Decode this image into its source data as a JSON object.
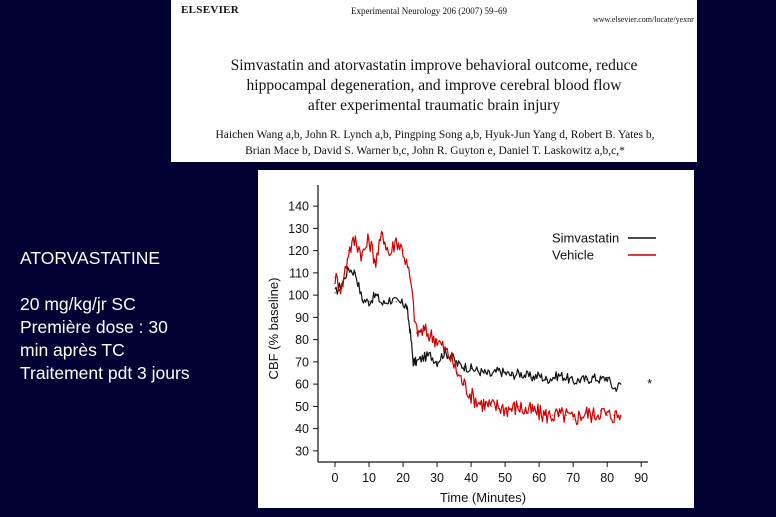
{
  "paper": {
    "publisher": "ELSEVIER",
    "journal": "Experimental Neurology 206 (2007) 59–69",
    "url": "www.elsevier.com/locate/yexnr",
    "title_lines": [
      "Simvastatin and atorvastatin improve behavioral outcome, reduce",
      "hippocampal degeneration, and improve cerebral blood flow",
      "after experimental traumatic brain injury"
    ],
    "authors_lines": [
      "Haichen Wang a,b, John R. Lynch a,b, Pingping Song a,b, Hyuk-Jun Yang d, Robert B. Yates b,",
      "Brian Mace b, David S. Warner b,c, John R. Guyton e, Daniel T. Laskowitz a,b,c,*"
    ]
  },
  "slide": {
    "drug": "ATORVASTATINE",
    "details": [
      "20 mg/kg/jr SC",
      "Première dose : 30",
      "min après TC",
      "Traitement pdt 3 jours"
    ]
  },
  "chart_data": {
    "type": "line",
    "xlabel": "Time (Minutes)",
    "ylabel": "CBF (% baseline)",
    "xticks": [
      0,
      10,
      20,
      30,
      40,
      50,
      60,
      70,
      80,
      90
    ],
    "yticks": [
      30,
      40,
      50,
      60,
      70,
      80,
      90,
      100,
      110,
      120,
      130,
      140
    ],
    "xlim": [
      -5,
      92
    ],
    "ylim": [
      25,
      145
    ],
    "annotation": "*",
    "legend_position": "top-right",
    "series": [
      {
        "name": "Simvastatin",
        "color": "#111111",
        "x": [
          0,
          2,
          4,
          6,
          8,
          10,
          12,
          14,
          16,
          18,
          20,
          21,
          22,
          23,
          24,
          26,
          28,
          30,
          32,
          34,
          36,
          38,
          40,
          42,
          44,
          46,
          48,
          50,
          52,
          54,
          56,
          58,
          60,
          62,
          64,
          66,
          68,
          70,
          72,
          74,
          76,
          78,
          80,
          82,
          84
        ],
        "y": [
          101,
          105,
          112,
          110,
          98,
          97,
          100,
          96,
          98,
          97,
          96,
          95,
          85,
          70,
          70,
          72,
          73,
          70,
          74,
          73,
          69,
          68,
          67,
          66,
          65,
          64,
          66,
          65,
          64,
          65,
          64,
          63,
          64,
          62,
          63,
          64,
          63,
          61,
          62,
          62,
          63,
          62,
          63,
          58,
          60
        ]
      },
      {
        "name": "Vehicle",
        "color": "#cc0000",
        "x": [
          0,
          2,
          4,
          6,
          8,
          10,
          12,
          14,
          16,
          18,
          20,
          22,
          24,
          26,
          28,
          30,
          32,
          34,
          36,
          38,
          40,
          42,
          44,
          46,
          48,
          50,
          52,
          54,
          56,
          58,
          60,
          62,
          64,
          66,
          68,
          70,
          72,
          74,
          76,
          78,
          80,
          82,
          84
        ],
        "y": [
          108,
          103,
          120,
          125,
          118,
          125,
          115,
          128,
          118,
          125,
          120,
          108,
          83,
          84,
          82,
          80,
          76,
          72,
          65,
          60,
          55,
          52,
          51,
          50,
          50,
          49,
          49,
          50,
          48,
          48,
          47,
          46,
          46,
          46,
          46,
          44,
          46,
          47,
          46,
          48,
          46,
          46,
          46
        ]
      }
    ]
  }
}
